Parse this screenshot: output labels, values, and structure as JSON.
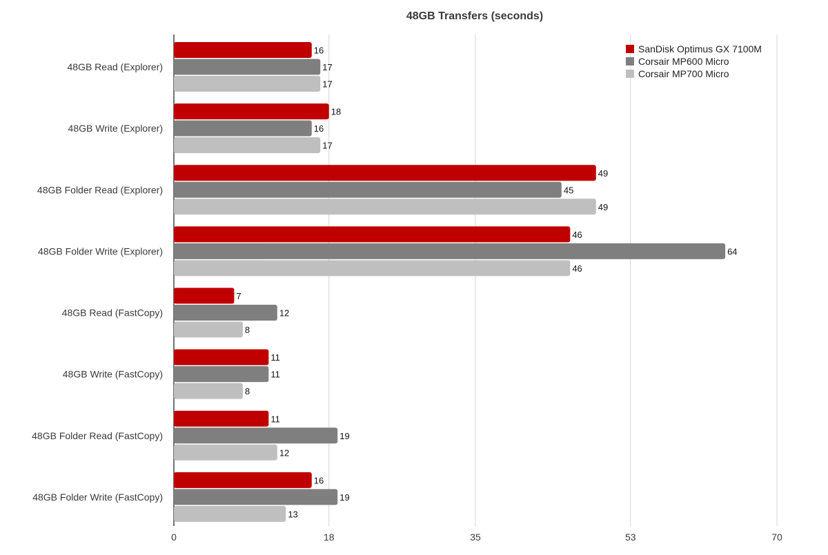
{
  "chart_data": {
    "type": "bar",
    "orientation": "horizontal",
    "title": "48GB Transfers (seconds)",
    "categories": [
      "48GB Read (Explorer)",
      "48GB Write (Explorer)",
      "48GB Folder Read (Explorer)",
      "48GB Folder Write (Explorer)",
      "48GB Read (FastCopy)",
      "48GB Write (FastCopy)",
      "48GB Folder Read (FastCopy)",
      "48GB Folder Write (FastCopy)"
    ],
    "series": [
      {
        "name": "SanDisk Optimus GX 7100M",
        "color": "#c00000",
        "values": [
          16,
          18,
          49,
          46,
          7,
          11,
          11,
          16
        ]
      },
      {
        "name": "Corsair MP600 Micro",
        "color": "#7f7f7f",
        "values": [
          17,
          16,
          45,
          64,
          12,
          11,
          19,
          19
        ]
      },
      {
        "name": "Corsair MP700 Micro",
        "color": "#bfbfbf",
        "values": [
          17,
          17,
          49,
          46,
          8,
          8,
          12,
          13
        ]
      }
    ],
    "xlim": [
      0,
      70
    ],
    "xticks": [
      0,
      18,
      35,
      53,
      70
    ],
    "xlabel": "",
    "ylabel": "",
    "grid": "vertical",
    "legend_position": "top-right",
    "data_labels": true
  }
}
